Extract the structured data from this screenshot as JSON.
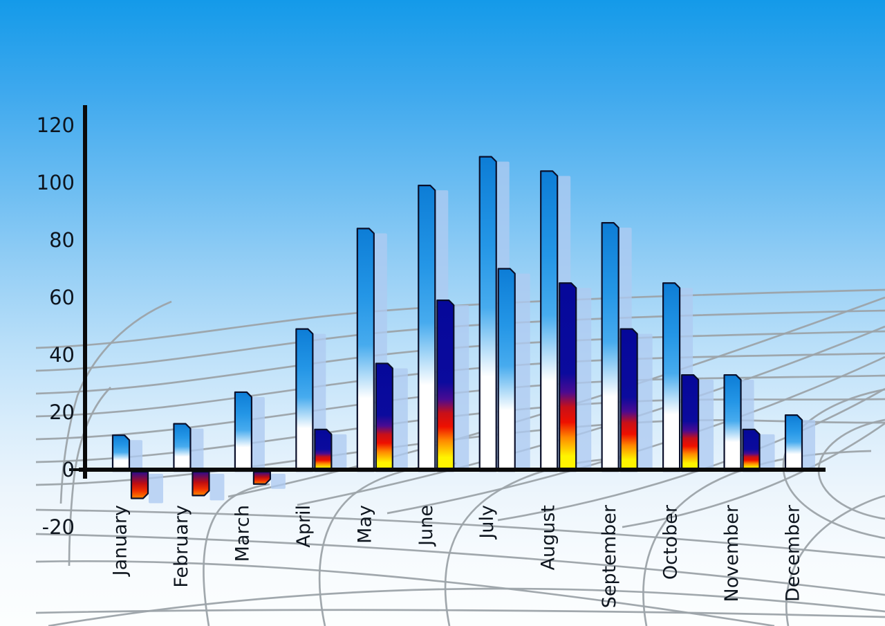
{
  "chart_data": {
    "type": "bar",
    "title": "",
    "categories": [
      "January",
      "February",
      "March",
      "April",
      "May",
      "June",
      "July",
      "August",
      "September",
      "October",
      "November",
      "December"
    ],
    "series": [
      {
        "style": "blue",
        "values": [
          12,
          16,
          27,
          49,
          84,
          99,
          109,
          104,
          86,
          65,
          33,
          19
        ]
      },
      {
        "style": "fire",
        "values": [
          -10,
          -9,
          -5,
          14,
          37,
          59,
          70,
          65,
          49,
          33,
          14,
          0
        ],
        "bar_styles": [
          "fire",
          "fire",
          "fire",
          "fire",
          "fire",
          "fire",
          "blue",
          "fire",
          "fire",
          "fire",
          "fire",
          "none"
        ]
      }
    ],
    "yticks": [
      "120",
      "100",
      "80",
      "60",
      "40",
      "20",
      "0",
      "-20"
    ],
    "ylim": [
      -20,
      120
    ],
    "xlabel": "",
    "ylabel": "",
    "legend": "none",
    "grid": "perspective-floor",
    "colors": {
      "sky_top": "#149AE9",
      "sky_bottom": "#FCFEFE",
      "bar_blue_top": "#0D7DD6",
      "bar_blue_mid": "#47ABEE",
      "bar_blue_bottom": "#FFFFFF",
      "bar_fire_navy": "#05089A",
      "bar_fire_red": "#EE1000",
      "bar_fire_orange": "#FF8800",
      "bar_fire_yellow": "#FFF400",
      "bar_outline": "#0A0F2A",
      "bar_shadow": "#AECBF1",
      "axis": "#0A0A0A",
      "grid_line": "#9CA3A9",
      "label_text": "#0E151E"
    }
  }
}
